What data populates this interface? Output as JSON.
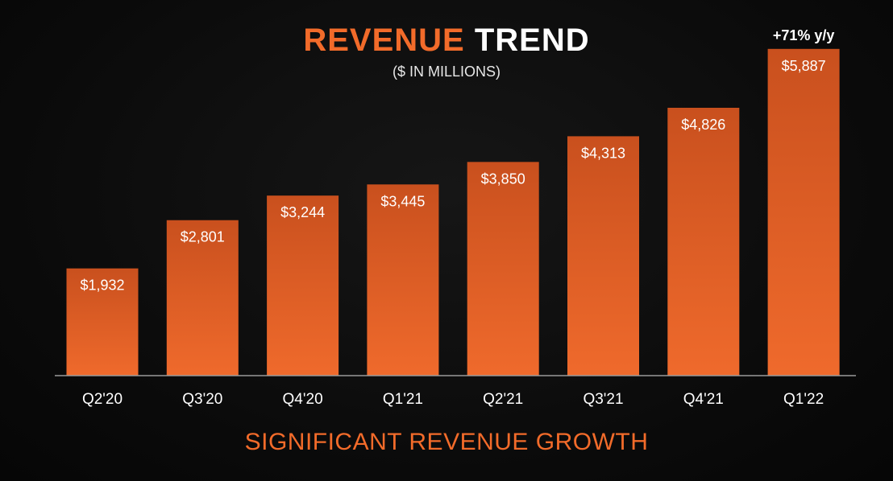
{
  "colors": {
    "accent": "#f26b2a",
    "bar_top": "#c9501e",
    "bar_bottom": "#ef6a2c",
    "text": "#ffffff",
    "background": "#0b0b0b"
  },
  "title": {
    "part1": "REVENUE",
    "part2": "TREND"
  },
  "subtitle": "($ IN MILLIONS)",
  "footer": "SIGNIFICANT REVENUE GROWTH",
  "chart_data": {
    "type": "bar",
    "title": "REVENUE TREND",
    "subtitle": "($ IN MILLIONS)",
    "categories": [
      "Q2'20",
      "Q3'20",
      "Q4'20",
      "Q1'21",
      "Q2'21",
      "Q3'21",
      "Q4'21",
      "Q1'22"
    ],
    "values": [
      1932,
      2801,
      3244,
      3445,
      3850,
      4313,
      4826,
      5887
    ],
    "data_labels": [
      "$1,932",
      "$2,801",
      "$3,244",
      "$3,445",
      "$3,850",
      "$4,313",
      "$4,826",
      "$5,887"
    ],
    "annotations": [
      {
        "category": "Q1'22",
        "text": "+71% y/y"
      }
    ],
    "xlabel": "",
    "ylabel": "",
    "ylim": [
      0,
      6000
    ],
    "grid": false,
    "legend": "none"
  }
}
